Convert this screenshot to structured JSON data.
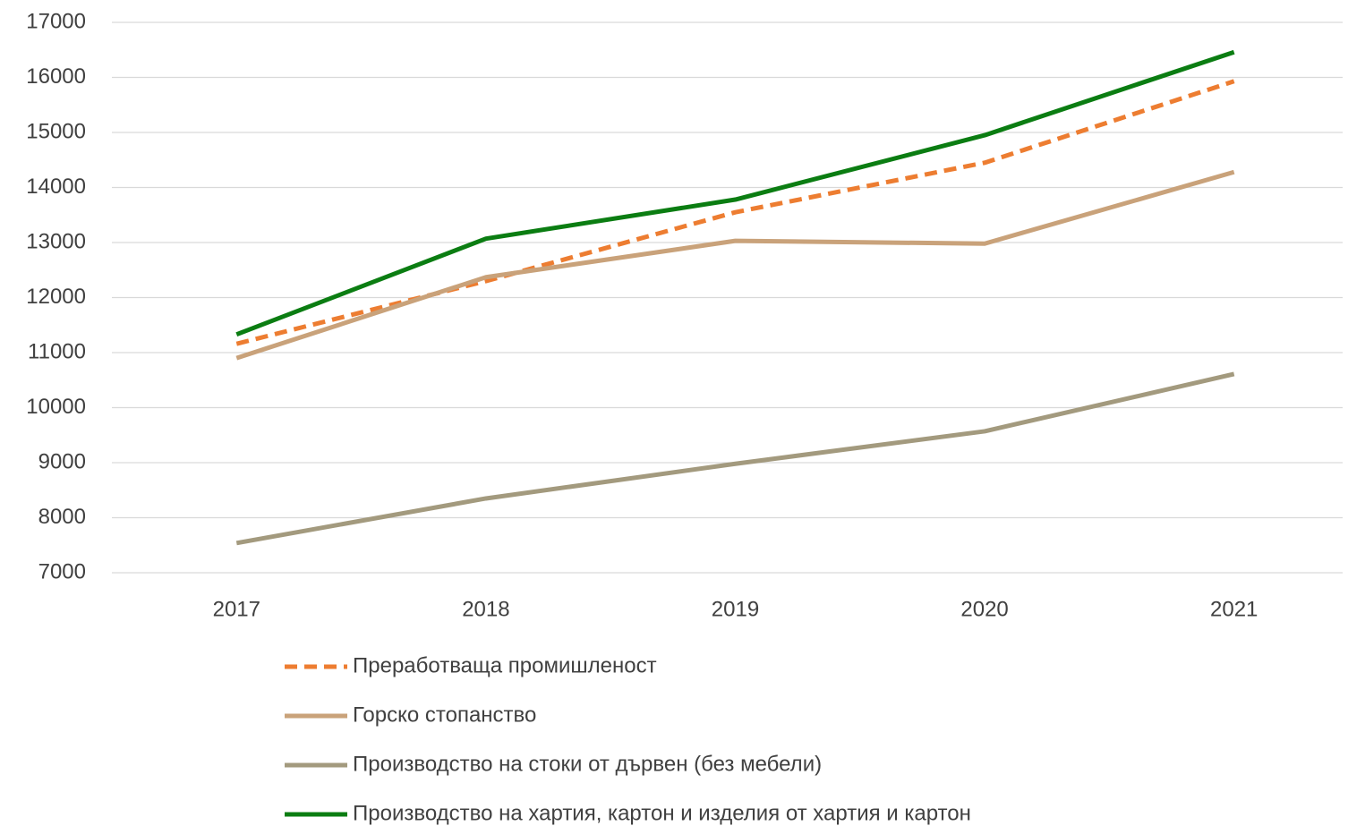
{
  "chart_data": {
    "type": "line",
    "categories": [
      "2017",
      "2018",
      "2019",
      "2020",
      "2021"
    ],
    "series": [
      {
        "name": "Преработваща промишленост",
        "color": "#ed7d31",
        "dashed": true,
        "values": [
          11160,
          12300,
          13550,
          14450,
          15930
        ]
      },
      {
        "name": "Горско стопанство",
        "color": "#c9a27a",
        "dashed": false,
        "values": [
          10900,
          12370,
          13030,
          12980,
          14280
        ]
      },
      {
        "name": "Производство на стоки от дървен (без мебели)",
        "color": "#a39a7e",
        "dashed": false,
        "values": [
          7540,
          8350,
          8980,
          9570,
          10610
        ]
      },
      {
        "name": "Производство на хартия, картон и изделия от хартия и картон",
        "color": "#0b7d12",
        "dashed": false,
        "values": [
          11330,
          13070,
          13780,
          14950,
          16460
        ]
      }
    ],
    "ylim": [
      7000,
      17000
    ],
    "yticks": [
      7000,
      8000,
      9000,
      10000,
      11000,
      12000,
      13000,
      14000,
      15000,
      16000,
      17000
    ],
    "grid": true,
    "legend": "bottom"
  }
}
